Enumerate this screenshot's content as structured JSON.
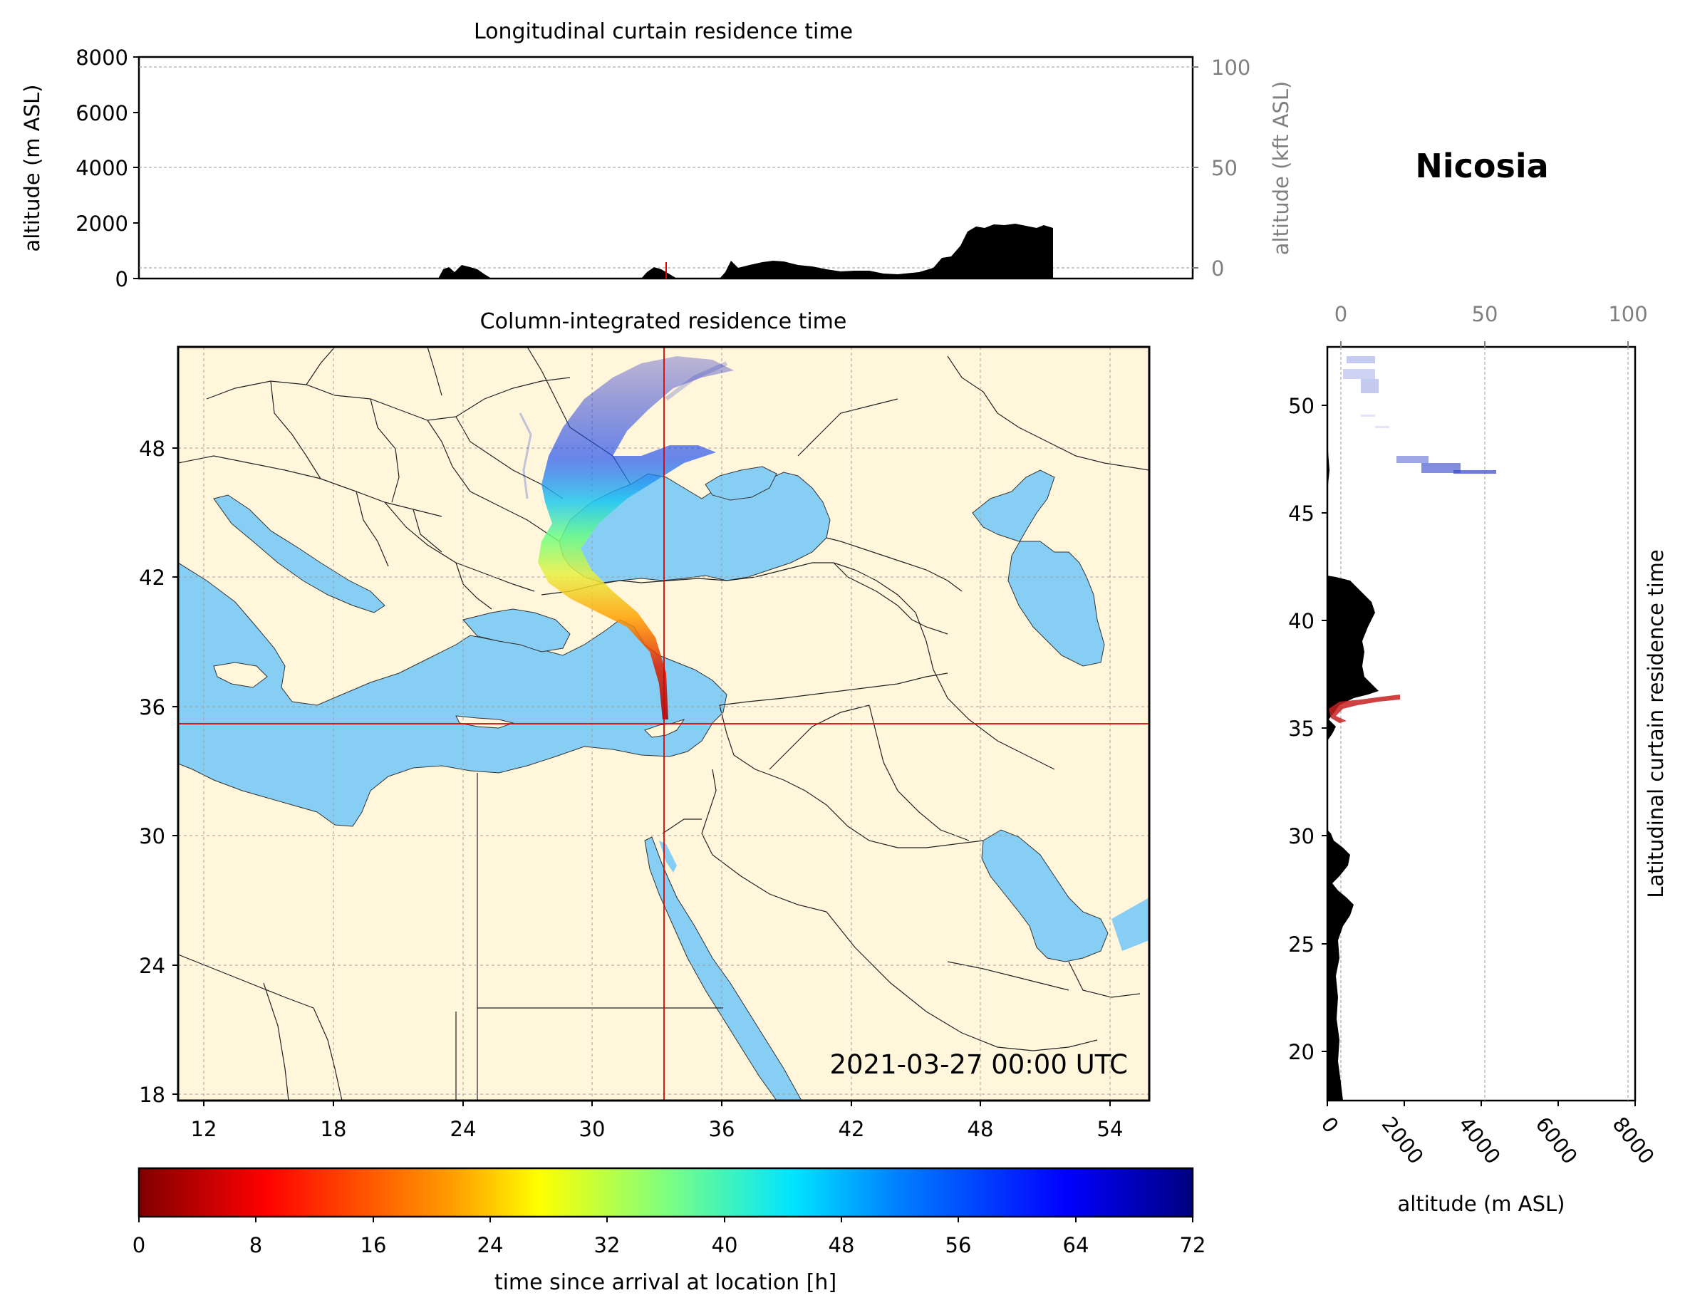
{
  "station": "Nicosia",
  "timestamp": "2021-03-27 00:00 UTC",
  "colors": {
    "land": "#FFF6DC",
    "sea": "#87CEF5",
    "terrain": "#000000",
    "crosshair": "#E00000",
    "grid": "#A0A0A0"
  },
  "top_panel": {
    "title": "Longitudinal curtain residence time",
    "ylabel_left": "altitude (m ASL)",
    "ylabel_right": "altitude (kft ASL)",
    "y_ticks_m": [
      "0",
      "2000",
      "4000",
      "6000",
      "8000"
    ],
    "y_ticks_kft": [
      "0",
      "50",
      "100"
    ]
  },
  "map_panel": {
    "title": "Column-integrated residence time",
    "lon_ticks": [
      "12",
      "18",
      "24",
      "30",
      "36",
      "42",
      "48",
      "54"
    ],
    "lat_ticks": [
      "18",
      "24",
      "30",
      "36",
      "42",
      "48"
    ],
    "station_lon": 33.4,
    "station_lat": 35.2,
    "lon_range": [
      10.8,
      55.8
    ],
    "lat_range": [
      18,
      53
    ]
  },
  "side_panel": {
    "ylabel": "Latitudinal curtain residence time",
    "xlabel": "altitude (m ASL)",
    "x_ticks_m": [
      "0",
      "2000",
      "4000",
      "6000",
      "8000"
    ],
    "x_ticks_kft": [
      "0",
      "50",
      "100"
    ],
    "lat_ticks": [
      "20",
      "25",
      "30",
      "35",
      "40",
      "45",
      "50"
    ]
  },
  "colorbar": {
    "label": "time since arrival at location [h]",
    "ticks": [
      "0",
      "8",
      "16",
      "24",
      "32",
      "40",
      "48",
      "56",
      "64",
      "72"
    ],
    "colormap": "jet reversed",
    "range": [
      0,
      72
    ]
  }
}
